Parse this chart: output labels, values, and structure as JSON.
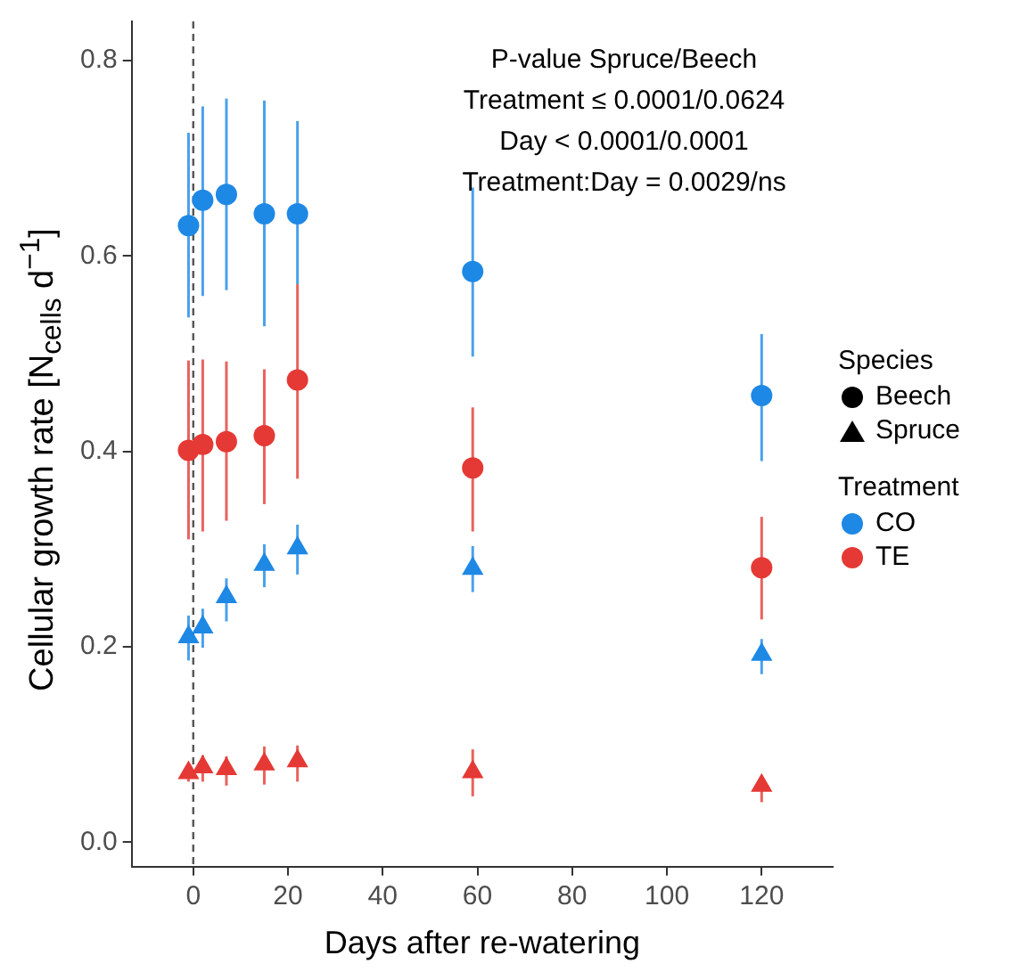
{
  "chart_data": {
    "type": "scatter",
    "xlabel": "Days after re-watering",
    "ylabel": "Cellular growth rate [N$_{cells}$ d$^{−1}$]",
    "xlim": [
      -13,
      135
    ],
    "xticks": [
      0,
      20,
      40,
      60,
      80,
      100,
      120
    ],
    "ylim": [
      -0.025,
      0.84
    ],
    "yticks": [
      {
        "value": 0,
        "label": "0.0"
      },
      {
        "value": 0.2,
        "label": "0.2"
      },
      {
        "value": 0.4,
        "label": "0.4"
      },
      {
        "value": 0.6,
        "label": "0.6"
      },
      {
        "value": 0.8,
        "label": "0.8"
      }
    ],
    "grid": false,
    "legend_title": "Species",
    "x": [
      -1,
      2,
      7,
      15,
      22,
      59,
      120
    ],
    "series": [
      {
        "color": "#1e88e5",
        "marker": "circle",
        "values": [
          0.631,
          0.657,
          0.663,
          0.643,
          0.643,
          0.584,
          0.457
        ],
        "errors": [
          [
            0.537,
            0.726
          ],
          [
            0.559,
            0.753
          ],
          [
            0.565,
            0.761
          ],
          [
            0.528,
            0.759
          ],
          [
            0.571,
            0.738
          ],
          [
            0.497,
            0.67
          ],
          [
            0.39,
            0.52
          ]
        ]
      },
      {
        "color": "#e53935",
        "marker": "circle",
        "values": [
          0.401,
          0.407,
          0.41,
          0.416,
          0.473,
          0.383,
          0.281
        ],
        "errors": [
          [
            0.31,
            0.493
          ],
          [
            0.318,
            0.494
          ],
          [
            0.329,
            0.492
          ],
          [
            0.346,
            0.484
          ],
          [
            0.372,
            0.571
          ],
          [
            0.318,
            0.445
          ],
          [
            0.228,
            0.333
          ]
        ]
      },
      {
        "color": "#1e88e5",
        "marker": "triangle",
        "values": [
          0.21,
          0.22,
          0.251,
          0.284,
          0.301,
          0.28,
          0.192
        ],
        "errors": [
          [
            0.186,
            0.232
          ],
          [
            0.199,
            0.239
          ],
          [
            0.226,
            0.27
          ],
          [
            0.261,
            0.305
          ],
          [
            0.274,
            0.325
          ],
          [
            0.256,
            0.303
          ],
          [
            0.172,
            0.208
          ]
        ]
      },
      {
        "color": "#e53935",
        "marker": "triangle",
        "values": [
          0.071,
          0.077,
          0.075,
          0.08,
          0.083,
          0.072,
          0.058
        ],
        "errors": [
          [
            0.062,
            0.08
          ],
          [
            0.062,
            0.089
          ],
          [
            0.058,
            0.088
          ],
          [
            0.059,
            0.098
          ],
          [
            0.062,
            0.099
          ],
          [
            0.047,
            0.095
          ],
          [
            0.041,
            0.068
          ]
        ]
      }
    ],
    "ref_lines": [
      {
        "axis": "x",
        "value": 0,
        "color": "#555555",
        "line_style": "dashed"
      }
    ],
    "annotations": [
      "P-value Spruce/Beech",
      "Treatment ≤ 0.0001/0.0624",
      "Day < 0.0001/0.0001",
      "Treatment:Day = 0.0029/ns",
      "Beech",
      "Spruce",
      "Treatment",
      "CO",
      "TE"
    ]
  }
}
